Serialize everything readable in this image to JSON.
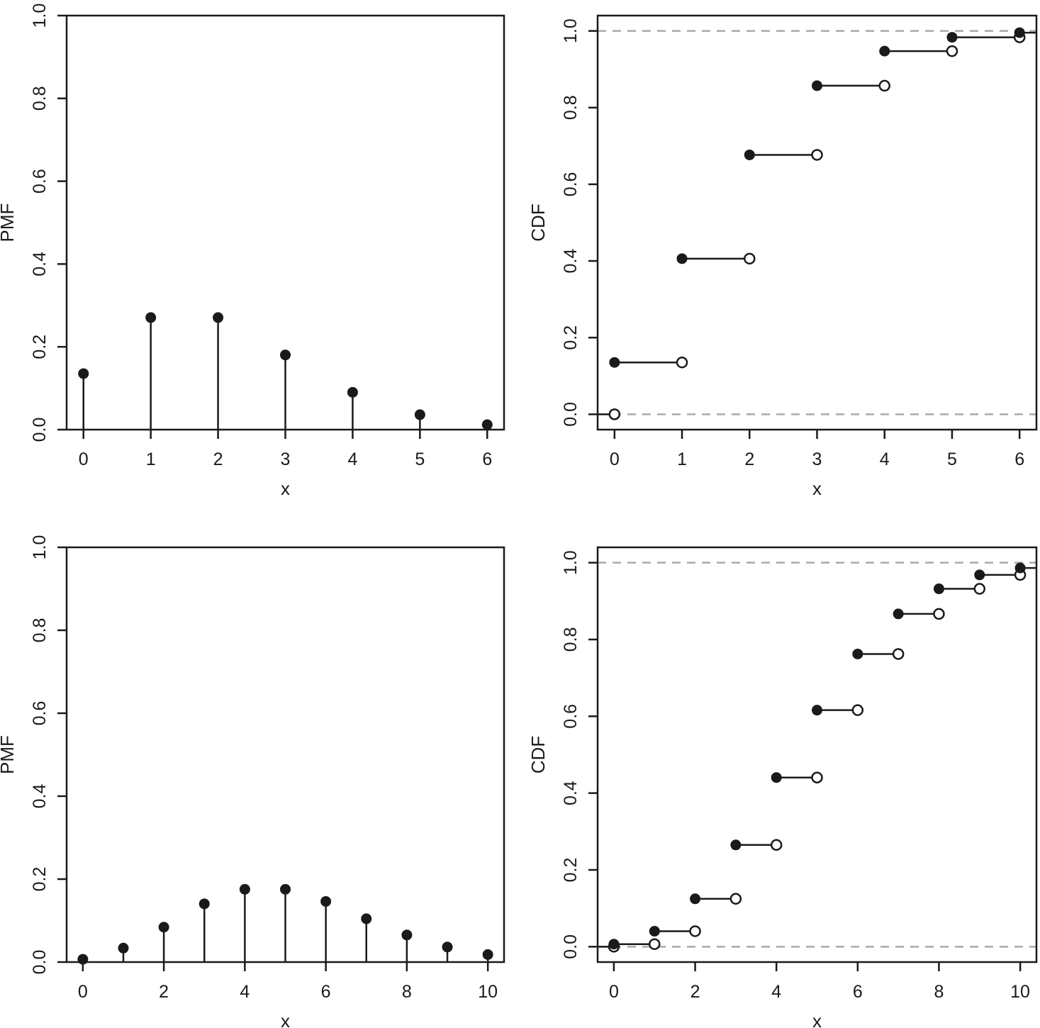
{
  "chart_data": [
    {
      "type": "stem",
      "xlabel": "x",
      "ylabel": "PMF",
      "xlim": [
        -0.25,
        6.25
      ],
      "ylim": [
        0,
        1
      ],
      "xticks": [
        "0",
        "1",
        "2",
        "3",
        "4",
        "5",
        "6"
      ],
      "yticks": [
        "0.0",
        "0.2",
        "0.4",
        "0.6",
        "0.8",
        "1.0"
      ],
      "x": [
        0,
        1,
        2,
        3,
        4,
        5,
        6
      ],
      "values": [
        0.1353,
        0.2707,
        0.2707,
        0.1804,
        0.0902,
        0.0361,
        0.012
      ]
    },
    {
      "type": "step",
      "xlabel": "x",
      "ylabel": "CDF",
      "xlim": [
        -0.25,
        6.25
      ],
      "ylim": [
        -0.04,
        1.04
      ],
      "xticks": [
        "0",
        "1",
        "2",
        "3",
        "4",
        "5",
        "6"
      ],
      "yticks": [
        "0.0",
        "0.2",
        "0.4",
        "0.6",
        "0.8",
        "1.0"
      ],
      "reference_lines": [
        0,
        1
      ],
      "reference_line_color": "#aaaaaa",
      "x": [
        0,
        1,
        2,
        3,
        4,
        5,
        6
      ],
      "values": [
        0.1353,
        0.406,
        0.6767,
        0.8571,
        0.9473,
        0.9834,
        0.9955
      ]
    },
    {
      "type": "stem",
      "xlabel": "x",
      "ylabel": "PMF",
      "xlim": [
        -0.4,
        10.4
      ],
      "ylim": [
        0,
        1
      ],
      "xticks": [
        "0",
        "2",
        "4",
        "6",
        "8",
        "10"
      ],
      "yticks": [
        "0.0",
        "0.2",
        "0.4",
        "0.6",
        "0.8",
        "1.0"
      ],
      "x": [
        0,
        1,
        2,
        3,
        4,
        5,
        6,
        7,
        8,
        9,
        10
      ],
      "values": [
        0.0067,
        0.0337,
        0.0842,
        0.1404,
        0.1755,
        0.1755,
        0.1462,
        0.1044,
        0.0653,
        0.0363,
        0.0181
      ]
    },
    {
      "type": "step",
      "xlabel": "x",
      "ylabel": "CDF",
      "xlim": [
        -0.4,
        10.4
      ],
      "ylim": [
        -0.04,
        1.04
      ],
      "xticks": [
        "0",
        "2",
        "4",
        "6",
        "8",
        "10"
      ],
      "yticks": [
        "0.0",
        "0.2",
        "0.4",
        "0.6",
        "0.8",
        "1.0"
      ],
      "reference_lines": [
        0,
        1
      ],
      "reference_line_color": "#aaaaaa",
      "x": [
        0,
        1,
        2,
        3,
        4,
        5,
        6,
        7,
        8,
        9,
        10
      ],
      "values": [
        0.0067,
        0.0404,
        0.1247,
        0.265,
        0.4405,
        0.616,
        0.7622,
        0.8666,
        0.9319,
        0.9682,
        0.9863
      ]
    }
  ]
}
